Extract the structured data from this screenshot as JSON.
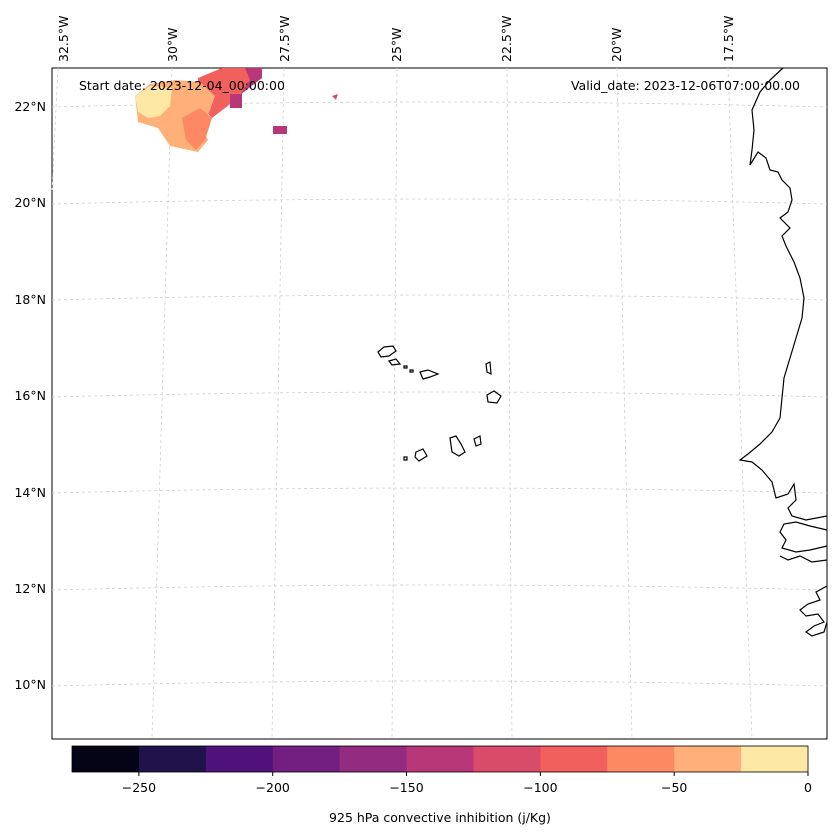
{
  "map": {
    "start_date": "Start date: 2023-12-04_00:00:00",
    "valid_date": "Valid_date: 2023-12-06T07:00:00.00",
    "lon_labels": [
      "32.5°W",
      "30°W",
      "27.5°W",
      "25°W",
      "22.5°W",
      "20°W",
      "17.5°W"
    ],
    "lat_labels": [
      "22°N",
      "20°N",
      "18°N",
      "16°N",
      "14°N",
      "12°N",
      "10°N"
    ]
  },
  "colorbar": {
    "label": "925 hPa convective inhibition (j/Kg)",
    "ticks": [
      "−250",
      "−200",
      "−150",
      "−100",
      "−50",
      "0"
    ],
    "colors": [
      "#050416",
      "#20124a",
      "#4f127b",
      "#721f81",
      "#932b80",
      "#b73779",
      "#d84c6a",
      "#f1605d",
      "#fc8961",
      "#feb078",
      "#fde7a4"
    ]
  }
}
